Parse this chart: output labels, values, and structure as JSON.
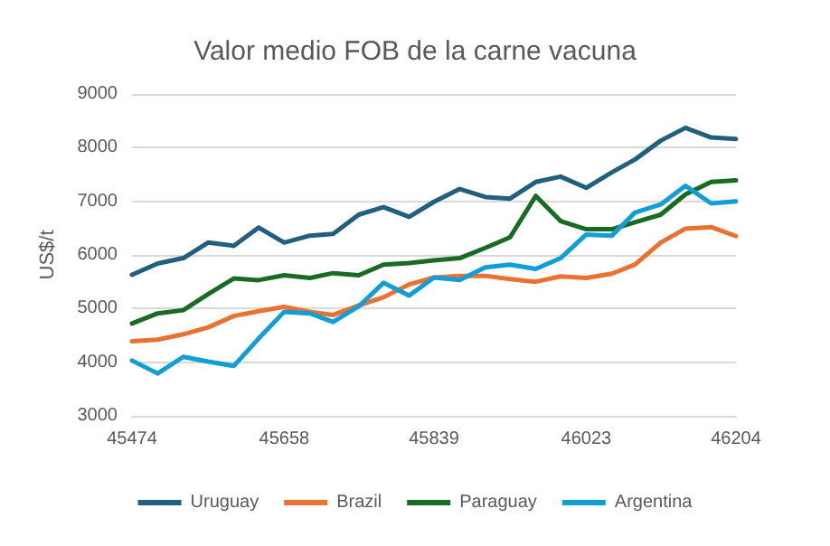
{
  "chart_data": {
    "type": "line",
    "title": "Valor medio FOB de la carne vacuna",
    "ylabel": "US$/t",
    "x": [
      45474,
      45505,
      45536,
      45566,
      45597,
      45627,
      45658,
      45689,
      45717,
      45748,
      45778,
      45809,
      45839,
      45870,
      45901,
      45931,
      45962,
      45992,
      46023,
      46054,
      46082,
      46113,
      46143,
      46174,
      46204
    ],
    "series": [
      {
        "name": "Uruguay",
        "color": "#215f7e",
        "values": [
          5630,
          5840,
          5940,
          6230,
          6170,
          6510,
          6230,
          6360,
          6390,
          6750,
          6890,
          6710,
          6990,
          7230,
          7080,
          7050,
          7360,
          7460,
          7250,
          7540,
          7780,
          8130,
          8370,
          8190,
          8160
        ]
      },
      {
        "name": "Brazil",
        "color": "#e97132",
        "values": [
          4390,
          4420,
          4520,
          4650,
          4860,
          4950,
          5030,
          4940,
          4880,
          5060,
          5210,
          5450,
          5580,
          5610,
          5610,
          5550,
          5500,
          5600,
          5570,
          5650,
          5820,
          6230,
          6490,
          6520,
          6350
        ]
      },
      {
        "name": "Paraguay",
        "color": "#196b24",
        "values": [
          4720,
          4910,
          4970,
          5270,
          5560,
          5530,
          5620,
          5570,
          5660,
          5620,
          5820,
          5850,
          5900,
          5940,
          6130,
          6330,
          7100,
          6630,
          6480,
          6480,
          6610,
          6750,
          7130,
          7360,
          7390
        ]
      },
      {
        "name": "Argentina",
        "color": "#0f9ed5",
        "values": [
          4030,
          3790,
          4100,
          4010,
          3930,
          4440,
          4940,
          4910,
          4750,
          5040,
          5480,
          5240,
          5580,
          5530,
          5770,
          5820,
          5740,
          5940,
          6380,
          6360,
          6790,
          6940,
          7290,
          6960,
          7000
        ]
      }
    ],
    "xlim": [
      45474,
      46204
    ],
    "xticks": [
      45474,
      45658,
      45839,
      46023,
      46204
    ],
    "ylim": [
      3000,
      9000
    ],
    "yticks": [
      3000,
      4000,
      5000,
      6000,
      7000,
      8000,
      9000
    ],
    "grid": "y",
    "legend": "bottom",
    "marker": "none",
    "line_style": "solid"
  }
}
